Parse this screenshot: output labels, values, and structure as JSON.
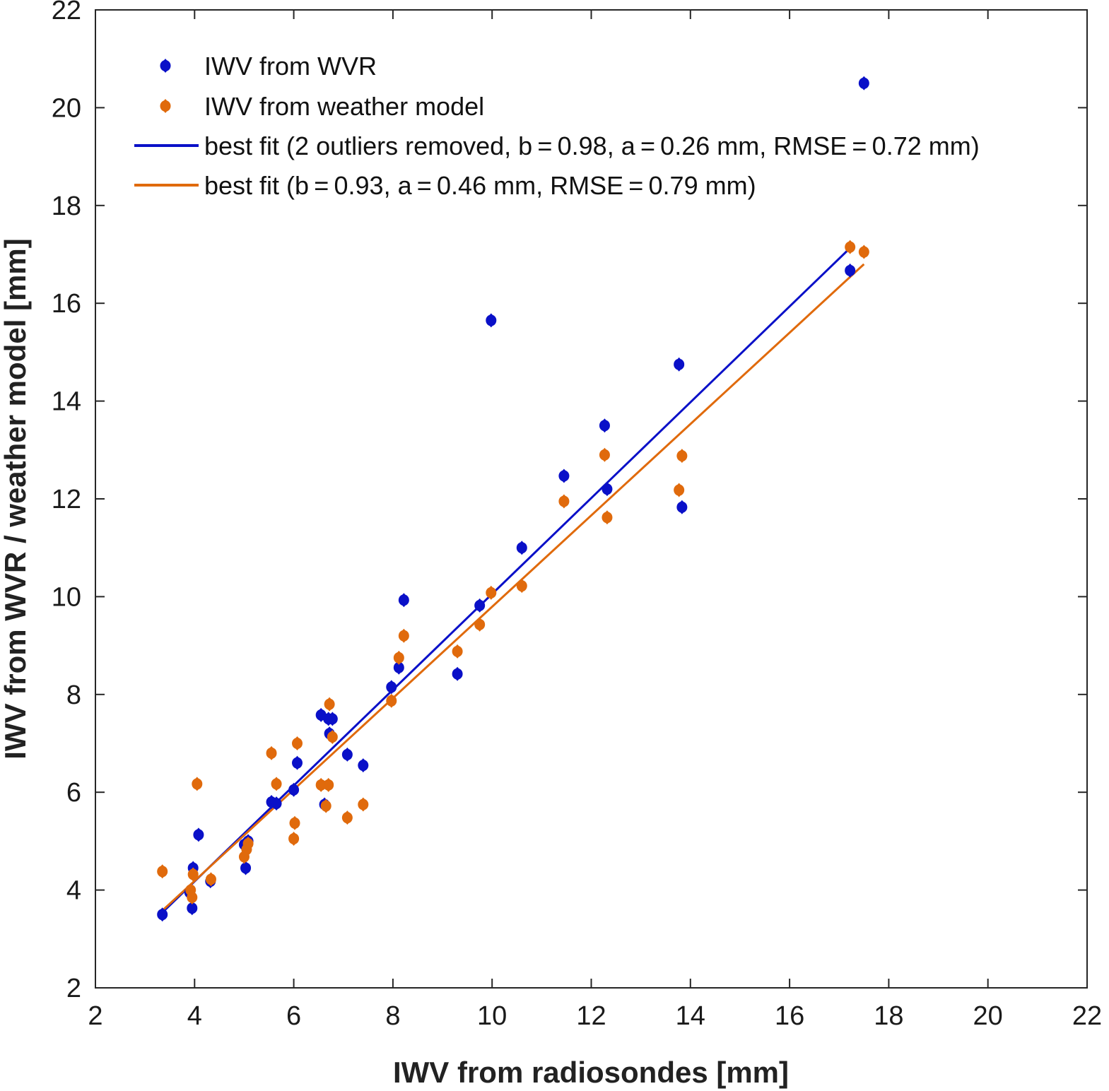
{
  "chart_data": {
    "type": "scatter",
    "xlabel": "IWV from radiosondes [mm]",
    "ylabel": "IWV from WVR / weather model [mm]",
    "xlim": [
      2,
      22
    ],
    "ylim": [
      2,
      22
    ],
    "xticks": [
      2,
      4,
      6,
      8,
      10,
      12,
      14,
      16,
      18,
      20,
      22
    ],
    "yticks": [
      2,
      4,
      6,
      8,
      10,
      12,
      14,
      16,
      18,
      20,
      22
    ],
    "grid": false,
    "legend_position": "top-left",
    "series": [
      {
        "name": "IWV from WVR",
        "kind": "points",
        "color": "#0a10c8",
        "points": [
          [
            3.35,
            3.5
          ],
          [
            3.9,
            3.95
          ],
          [
            3.95,
            3.63
          ],
          [
            3.97,
            4.45
          ],
          [
            4.08,
            5.13
          ],
          [
            4.32,
            4.18
          ],
          [
            5.0,
            4.93
          ],
          [
            5.03,
            4.45
          ],
          [
            5.08,
            5.0
          ],
          [
            5.55,
            5.8
          ],
          [
            5.65,
            5.77
          ],
          [
            6.0,
            6.05
          ],
          [
            6.07,
            6.6
          ],
          [
            6.55,
            7.58
          ],
          [
            6.62,
            5.75
          ],
          [
            6.7,
            7.5
          ],
          [
            6.72,
            7.2
          ],
          [
            6.78,
            7.5
          ],
          [
            7.08,
            6.77
          ],
          [
            7.4,
            6.55
          ],
          [
            7.97,
            8.15
          ],
          [
            8.12,
            8.55
          ],
          [
            8.22,
            9.93
          ],
          [
            9.3,
            8.42
          ],
          [
            9.75,
            9.82
          ],
          [
            9.98,
            15.65
          ],
          [
            10.6,
            11.0
          ],
          [
            11.45,
            12.47
          ],
          [
            12.27,
            13.5
          ],
          [
            12.32,
            12.2
          ],
          [
            13.77,
            14.75
          ],
          [
            13.83,
            11.83
          ],
          [
            17.22,
            16.67
          ],
          [
            17.5,
            20.5
          ]
        ]
      },
      {
        "name": "IWV from weather model",
        "kind": "points",
        "color": "#e06a0c",
        "points": [
          [
            3.35,
            4.38
          ],
          [
            3.92,
            4.0
          ],
          [
            3.95,
            3.85
          ],
          [
            3.97,
            4.32
          ],
          [
            4.05,
            6.17
          ],
          [
            4.33,
            4.22
          ],
          [
            5.0,
            4.68
          ],
          [
            5.05,
            4.83
          ],
          [
            5.08,
            4.95
          ],
          [
            5.55,
            6.8
          ],
          [
            5.65,
            6.17
          ],
          [
            6.0,
            5.05
          ],
          [
            6.02,
            5.37
          ],
          [
            6.07,
            7.0
          ],
          [
            6.55,
            6.15
          ],
          [
            6.65,
            5.72
          ],
          [
            6.7,
            6.15
          ],
          [
            6.72,
            7.8
          ],
          [
            6.78,
            7.13
          ],
          [
            7.08,
            5.48
          ],
          [
            7.4,
            5.75
          ],
          [
            7.97,
            7.87
          ],
          [
            8.12,
            8.75
          ],
          [
            8.22,
            9.2
          ],
          [
            9.3,
            8.88
          ],
          [
            9.75,
            9.43
          ],
          [
            9.98,
            10.08
          ],
          [
            10.6,
            10.22
          ],
          [
            11.45,
            11.95
          ],
          [
            12.27,
            12.9
          ],
          [
            12.32,
            11.62
          ],
          [
            13.77,
            12.18
          ],
          [
            13.83,
            12.88
          ],
          [
            17.22,
            17.15
          ],
          [
            17.5,
            17.05
          ]
        ]
      },
      {
        "name": "best fit (2 outliers removed, b = 0.98, a = 0.26 mm, RMSE = 0.72 mm)",
        "kind": "line",
        "color": "#0a10c8",
        "x": [
          3.35,
          17.22
        ],
        "y": [
          3.54,
          17.13
        ]
      },
      {
        "name": "best fit (b = 0.93, a = 0.46 mm, RMSE = 0.79 mm)",
        "kind": "line",
        "color": "#e06a0c",
        "x": [
          3.35,
          17.5
        ],
        "y": [
          3.58,
          16.8
        ]
      }
    ]
  }
}
